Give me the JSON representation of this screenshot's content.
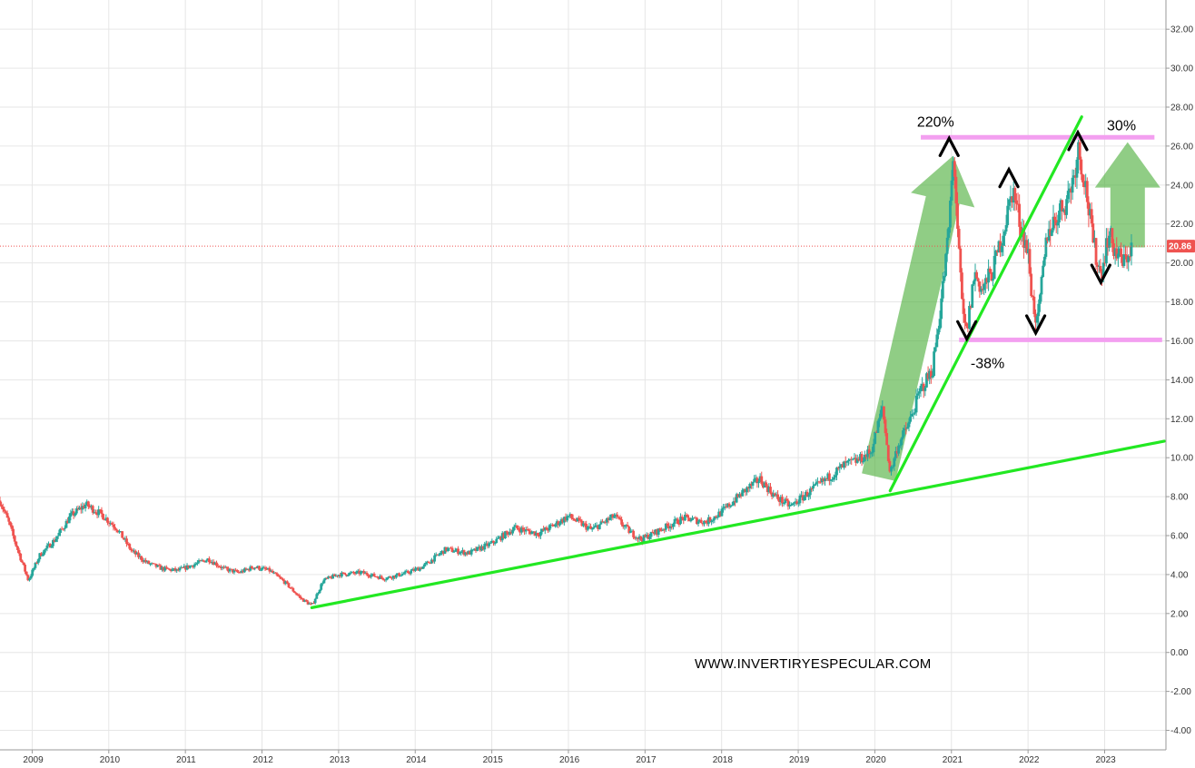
{
  "chart_data": {
    "type": "candlestick",
    "title": "",
    "xlabel": "",
    "ylabel": "",
    "x_range": [
      2008.58,
      2023.8
    ],
    "ylim": [
      -5,
      33.5
    ],
    "y_ticks": [
      32.0,
      30.0,
      28.0,
      26.0,
      24.0,
      22.0,
      20.0,
      18.0,
      16.0,
      14.0,
      12.0,
      10.0,
      8.0,
      6.0,
      4.0,
      2.0,
      0.0,
      -2.0,
      -4.0
    ],
    "y_tick_labels": [
      "32.00",
      "30.00",
      "28.00",
      "26.00",
      "24.00",
      "22.00",
      "20.00",
      "18.00",
      "16.00",
      "14.00",
      "12.00",
      "10.00",
      "8.00",
      "6.00",
      "4.00",
      "2.00",
      "0.00",
      "-2.00",
      "-4.00"
    ],
    "x_ticks": [
      2009,
      2010,
      2011,
      2012,
      2013,
      2014,
      2015,
      2016,
      2017,
      2018,
      2019,
      2020,
      2021,
      2022,
      2023
    ],
    "x_tick_labels": [
      "2009",
      "2010",
      "2011",
      "2012",
      "2013",
      "2014",
      "2015",
      "2016",
      "2017",
      "2018",
      "2019",
      "2020",
      "2021",
      "2022",
      "2023"
    ],
    "grid": true,
    "last_price": 20.86,
    "last_price_label": "20.86",
    "price_path": [
      [
        2008.58,
        7.8
      ],
      [
        2008.7,
        6.6
      ],
      [
        2008.8,
        5.4
      ],
      [
        2008.95,
        3.7
      ],
      [
        2009.1,
        5.0
      ],
      [
        2009.3,
        5.8
      ],
      [
        2009.5,
        7.0
      ],
      [
        2009.7,
        7.6
      ],
      [
        2009.9,
        7.1
      ],
      [
        2010.1,
        6.4
      ],
      [
        2010.3,
        5.2
      ],
      [
        2010.5,
        4.6
      ],
      [
        2010.7,
        4.3
      ],
      [
        2010.9,
        4.2
      ],
      [
        2011.1,
        4.5
      ],
      [
        2011.3,
        4.8
      ],
      [
        2011.5,
        4.3
      ],
      [
        2011.7,
        4.1
      ],
      [
        2011.9,
        4.4
      ],
      [
        2012.1,
        4.2
      ],
      [
        2012.3,
        3.6
      ],
      [
        2012.5,
        2.8
      ],
      [
        2012.65,
        2.4
      ],
      [
        2012.8,
        3.7
      ],
      [
        2013.0,
        4.0
      ],
      [
        2013.3,
        4.1
      ],
      [
        2013.6,
        3.8
      ],
      [
        2013.9,
        4.1
      ],
      [
        2014.1,
        4.4
      ],
      [
        2014.4,
        5.3
      ],
      [
        2014.7,
        5.1
      ],
      [
        2015.0,
        5.6
      ],
      [
        2015.3,
        6.4
      ],
      [
        2015.6,
        6.1
      ],
      [
        2015.8,
        6.5
      ],
      [
        2016.0,
        7.0
      ],
      [
        2016.3,
        6.3
      ],
      [
        2016.6,
        7.0
      ],
      [
        2016.8,
        6.2
      ],
      [
        2016.95,
        5.8
      ],
      [
        2017.2,
        6.3
      ],
      [
        2017.5,
        6.9
      ],
      [
        2017.8,
        6.7
      ],
      [
        2018.0,
        7.2
      ],
      [
        2018.3,
        8.3
      ],
      [
        2018.5,
        8.9
      ],
      [
        2018.7,
        8.0
      ],
      [
        2018.9,
        7.5
      ],
      [
        2019.1,
        8.1
      ],
      [
        2019.4,
        9.0
      ],
      [
        2019.6,
        9.6
      ],
      [
        2019.8,
        9.9
      ],
      [
        2019.95,
        10.3
      ],
      [
        2020.05,
        11.8
      ],
      [
        2020.1,
        12.6
      ],
      [
        2020.2,
        9.2
      ],
      [
        2020.3,
        10.6
      ],
      [
        2020.45,
        11.8
      ],
      [
        2020.6,
        13.5
      ],
      [
        2020.75,
        14.5
      ],
      [
        2020.85,
        17.5
      ],
      [
        2020.95,
        21.0
      ],
      [
        2021.03,
        25.6
      ],
      [
        2021.1,
        20.2
      ],
      [
        2021.15,
        17.2
      ],
      [
        2021.2,
        16.4
      ],
      [
        2021.3,
        19.5
      ],
      [
        2021.4,
        18.6
      ],
      [
        2021.55,
        19.7
      ],
      [
        2021.7,
        22.0
      ],
      [
        2021.8,
        23.8
      ],
      [
        2021.9,
        22.0
      ],
      [
        2022.0,
        20.5
      ],
      [
        2022.05,
        18.3
      ],
      [
        2022.12,
        16.8
      ],
      [
        2022.25,
        21.5
      ],
      [
        2022.4,
        22.6
      ],
      [
        2022.5,
        23.2
      ],
      [
        2022.6,
        24.5
      ],
      [
        2022.65,
        26.0
      ],
      [
        2022.75,
        24.0
      ],
      [
        2022.85,
        21.0
      ],
      [
        2022.95,
        19.4
      ],
      [
        2023.05,
        21.5
      ],
      [
        2023.15,
        20.5
      ],
      [
        2023.25,
        20.0
      ],
      [
        2023.35,
        20.86
      ]
    ],
    "trendlines": [
      {
        "color": "#22e822",
        "points": [
          [
            2012.65,
            2.3
          ],
          [
            2023.78,
            10.85
          ]
        ]
      },
      {
        "color": "#22e822",
        "points": [
          [
            2020.2,
            8.3
          ],
          [
            2022.7,
            27.5
          ]
        ]
      }
    ],
    "horizontal_bands": [
      {
        "color": "#f39ff0",
        "y": 26.45,
        "x": [
          2020.6,
          2023.65
        ]
      },
      {
        "color": "#f39ff0",
        "y": 16.05,
        "x": [
          2021.1,
          2023.75
        ]
      }
    ],
    "arrows": [
      {
        "color": "#4caf3a",
        "from": [
          2020.05,
          9.0
        ],
        "to": [
          2021.02,
          25.5
        ]
      },
      {
        "color": "#4caf3a",
        "from": [
          2023.3,
          20.8
        ],
        "to": [
          2023.3,
          26.2
        ]
      }
    ],
    "annotations": [
      {
        "text": "220%",
        "x": 2020.55,
        "y": 27.0
      },
      {
        "text": "-38%",
        "x": 2021.25,
        "y": 14.6
      },
      {
        "text": "30%",
        "x": 2023.03,
        "y": 26.8
      }
    ],
    "markers": [
      {
        "kind": "peak",
        "x": 2020.97,
        "y": 26.4
      },
      {
        "kind": "peak",
        "x": 2021.75,
        "y": 24.8
      },
      {
        "kind": "peak",
        "x": 2022.65,
        "y": 26.7
      },
      {
        "kind": "trough",
        "x": 2021.2,
        "y": 16.1
      },
      {
        "kind": "trough",
        "x": 2022.1,
        "y": 16.4
      },
      {
        "kind": "trough",
        "x": 2022.95,
        "y": 19.0
      }
    ],
    "colors": {
      "up": "#26a69a",
      "down": "#ef5350",
      "price_line": "#ef5350",
      "grid": "#e6e6e6"
    }
  },
  "watermark": "WWW.INVERTIRYESPECULAR.COM"
}
